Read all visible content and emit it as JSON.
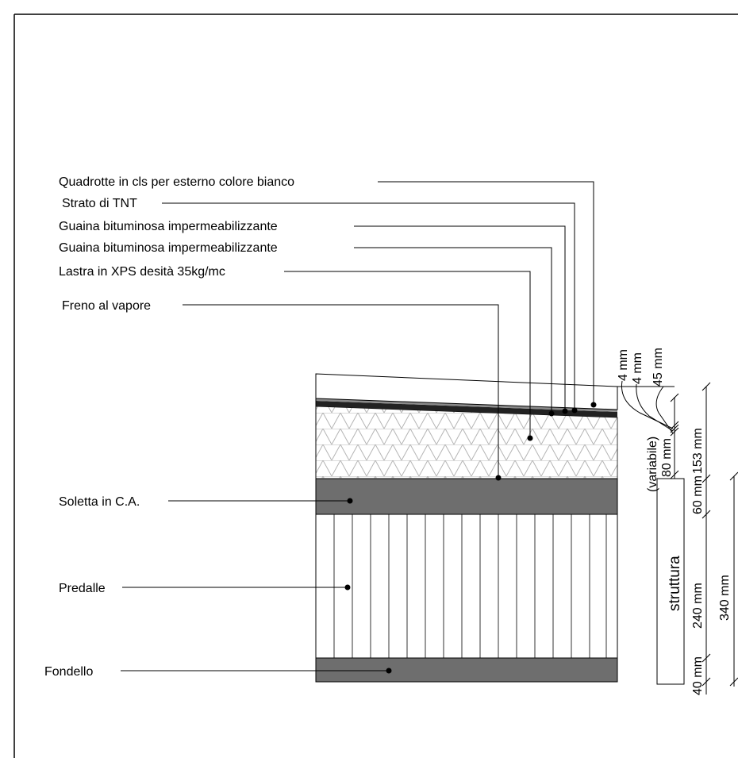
{
  "labels": [
    {
      "text": "Quadrotte in cls per esterno colore bianco"
    },
    {
      "text": "Strato di TNT"
    },
    {
      "text": "Guaina bituminosa impermeabilizzante"
    },
    {
      "text": "Guaina bituminosa impermeabilizzante"
    },
    {
      "text": "Lastra in XPS desità 35kg/mc"
    },
    {
      "text": "Freno al vapore"
    },
    {
      "text": "Soletta in C.A."
    },
    {
      "text": "Predalle"
    },
    {
      "text": "Fondello"
    }
  ],
  "dimensions": {
    "d_4a": "4 mm",
    "d_4b": "4 mm",
    "d_45": "45 mm",
    "d_80": "80 mm",
    "variabile": "(variabile)",
    "d_153": "153 mm",
    "d_60": "60 mm",
    "d_240": "240 mm",
    "d_40": "40 mm",
    "struttura": "struttura",
    "d_340": "340 mm"
  },
  "colors": {
    "concrete_dark": "#6e6e6e",
    "line": "#000000",
    "hatch": "#b4b4b4"
  }
}
